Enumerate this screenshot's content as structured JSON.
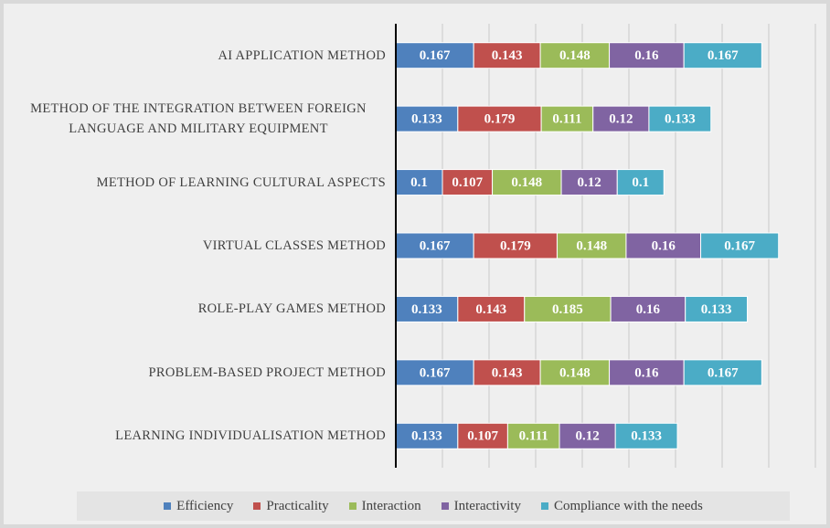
{
  "chart_data": {
    "type": "stacked-barh",
    "categories": [
      "AI APPLICATION METHOD",
      "METHOD OF THE INTEGRATION BETWEEN FOREIGN LANGUAGE AND MILITARY EQUIPMENT",
      "METHOD OF LEARNING CULTURAL ASPECTS",
      "VIRTUAL CLASSES METHOD",
      "ROLE-PLAY GAMES METHOD",
      "PROBLEM-BASED PROJECT METHOD",
      "LEARNING INDIVIDUALISATION METHOD"
    ],
    "series": [
      {
        "name": "Efficiency",
        "color": "#4f81bd",
        "values": [
          0.167,
          0.133,
          0.1,
          0.167,
          0.133,
          0.167,
          0.133
        ]
      },
      {
        "name": "Practicality",
        "color": "#c0504d",
        "values": [
          0.143,
          0.179,
          0.107,
          0.179,
          0.143,
          0.143,
          0.107
        ]
      },
      {
        "name": "Interaction",
        "color": "#9bbb59",
        "values": [
          0.148,
          0.111,
          0.148,
          0.148,
          0.185,
          0.148,
          0.111
        ]
      },
      {
        "name": "Interactivity",
        "color": "#8064a2",
        "values": [
          0.16,
          0.12,
          0.12,
          0.16,
          0.16,
          0.16,
          0.12
        ]
      },
      {
        "name": "Compliance with the needs",
        "color": "#4bacc6",
        "values": [
          0.167,
          0.133,
          0.1,
          0.167,
          0.133,
          0.167,
          0.133
        ]
      }
    ],
    "xlim": [
      0,
      0.9
    ],
    "xticks": [
      0,
      0.1,
      0.2,
      0.3,
      0.4,
      0.5,
      0.6,
      0.7,
      0.8,
      0.9
    ],
    "grid": true,
    "legend": "bottom"
  }
}
